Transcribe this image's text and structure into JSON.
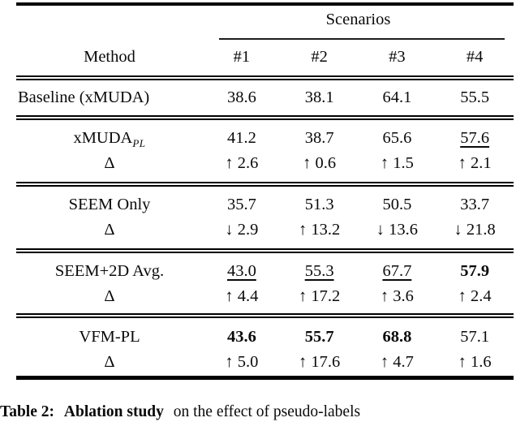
{
  "table": {
    "scenarios_label": "Scenarios",
    "method_label": "Method",
    "col_headers": [
      "#1",
      "#2",
      "#3",
      "#4"
    ],
    "sections": [
      {
        "rows": [
          {
            "method": "Baseline (xMUDA)",
            "cells": [
              "38.6",
              "38.1",
              "64.1",
              "55.5"
            ]
          }
        ]
      },
      {
        "rows": [
          {
            "method": "xMUDA",
            "method_sub": "PL",
            "cells": [
              "41.2",
              "38.7",
              "65.6",
              "57.6"
            ]
          },
          {
            "method": "Δ",
            "cells": [
              "↑ 2.6",
              "↑ 0.6",
              "↑ 1.5",
              "↑ 2.1"
            ]
          }
        ]
      },
      {
        "rows": [
          {
            "method": "SEEM Only",
            "cells": [
              "35.7",
              "51.3",
              "50.5",
              "33.7"
            ]
          },
          {
            "method": "Δ",
            "cells": [
              "↓ 2.9",
              "↑ 13.2",
              "↓ 13.6",
              "↓ 21.8"
            ]
          }
        ]
      },
      {
        "rows": [
          {
            "method": "SEEM+2D Avg.",
            "cells": [
              "43.0",
              "55.3",
              "67.7",
              "57.9"
            ]
          },
          {
            "method": "Δ",
            "cells": [
              "↑ 4.4",
              "↑ 17.2",
              "↑ 3.6",
              "↑ 2.4"
            ]
          }
        ]
      },
      {
        "rows": [
          {
            "method": "VFM-PL",
            "cells": [
              "43.6",
              "55.7",
              "68.8",
              "57.1"
            ]
          },
          {
            "method": "Δ",
            "cells": [
              "↑ 5.0",
              "↑ 17.6",
              "↑ 4.7",
              "↑ 1.6"
            ]
          }
        ]
      }
    ]
  },
  "caption": {
    "tag": "Table 2:",
    "title": "Ablation study",
    "rest": "on the effect of pseudo-labels"
  }
}
